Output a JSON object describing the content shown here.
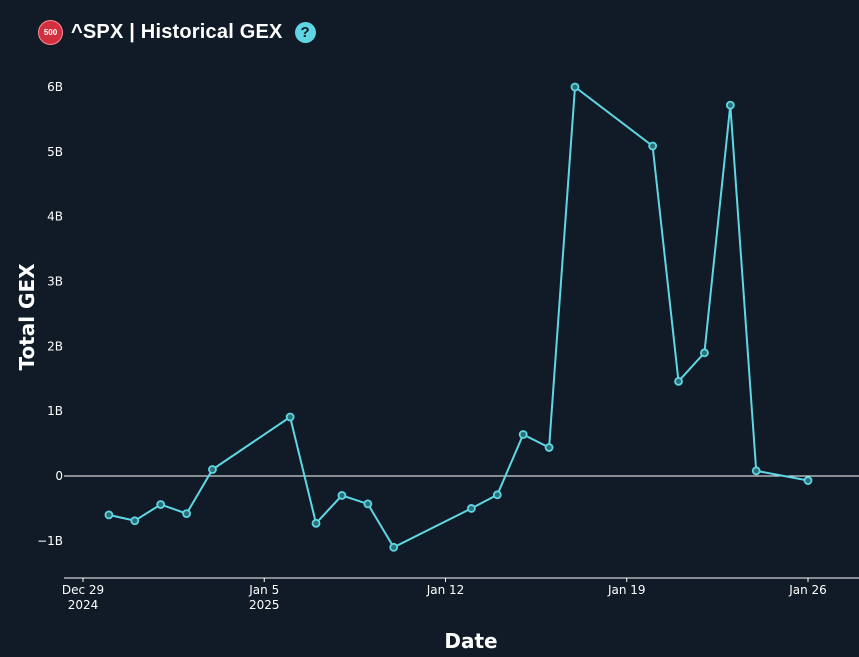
{
  "header": {
    "badge_text": "500",
    "title": "^SPX | Historical GEX",
    "help_icon": "question-icon"
  },
  "colors": {
    "background": "#111b27",
    "line": "#5fd6e3",
    "badge": "#d2303e",
    "axis": "#ffffff"
  },
  "chart_data": {
    "type": "line",
    "title": "^SPX | Historical GEX",
    "xlabel": "Date",
    "ylabel": "Total GEX",
    "unit": "B",
    "xlim": [
      "2024-12-28",
      "2025-01-27"
    ],
    "ylim": [
      -1.55,
      6.3
    ],
    "x_ticks": [
      {
        "date": "2024-12-29",
        "label": "Dec 29",
        "sublabel": "2024"
      },
      {
        "date": "2025-01-05",
        "label": "Jan 5",
        "sublabel": "2025"
      },
      {
        "date": "2025-01-12",
        "label": "Jan 12",
        "sublabel": ""
      },
      {
        "date": "2025-01-19",
        "label": "Jan 19",
        "sublabel": ""
      },
      {
        "date": "2025-01-26",
        "label": "Jan 26",
        "sublabel": ""
      }
    ],
    "y_ticks": [
      {
        "value": -1,
        "label": "−1B"
      },
      {
        "value": 0,
        "label": "0"
      },
      {
        "value": 1,
        "label": "1B"
      },
      {
        "value": 2,
        "label": "2B"
      },
      {
        "value": 3,
        "label": "3B"
      },
      {
        "value": 4,
        "label": "4B"
      },
      {
        "value": 5,
        "label": "5B"
      },
      {
        "value": 6,
        "label": "6B"
      }
    ],
    "grid": false,
    "series": [
      {
        "points": [
          {
            "x": "2024-12-30",
            "y": -0.6
          },
          {
            "x": "2024-12-31",
            "y": -0.69
          },
          {
            "x": "2025-01-01",
            "y": -0.44
          },
          {
            "x": "2025-01-02",
            "y": -0.58
          },
          {
            "x": "2025-01-03",
            "y": 0.1
          },
          {
            "x": "2025-01-06",
            "y": 0.91
          },
          {
            "x": "2025-01-07",
            "y": -0.73
          },
          {
            "x": "2025-01-08",
            "y": -0.3
          },
          {
            "x": "2025-01-09",
            "y": -0.43
          },
          {
            "x": "2025-01-10",
            "y": -1.1
          },
          {
            "x": "2025-01-13",
            "y": -0.5
          },
          {
            "x": "2025-01-14",
            "y": -0.29
          },
          {
            "x": "2025-01-15",
            "y": 0.64
          },
          {
            "x": "2025-01-16",
            "y": 0.44
          },
          {
            "x": "2025-01-17",
            "y": 6.0
          },
          {
            "x": "2025-01-20",
            "y": 5.09
          },
          {
            "x": "2025-01-21",
            "y": 1.46
          },
          {
            "x": "2025-01-22",
            "y": 1.9
          },
          {
            "x": "2025-01-23",
            "y": 5.72
          },
          {
            "x": "2025-01-24",
            "y": 0.08
          },
          {
            "x": "2025-01-26",
            "y": -0.07
          }
        ]
      }
    ]
  }
}
